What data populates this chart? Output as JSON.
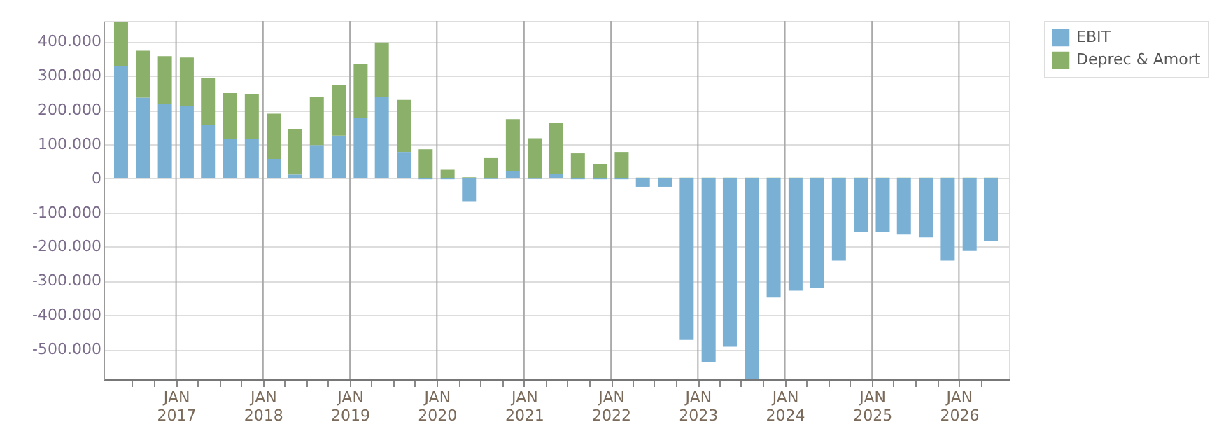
{
  "chart_data": {
    "type": "bar",
    "stacked": true,
    "x": [
      "2016-05-15",
      "2016-08-15",
      "2016-11-15",
      "2017-02-15",
      "2017-05-15",
      "2017-08-15",
      "2017-11-15",
      "2018-02-15",
      "2018-05-15",
      "2018-08-15",
      "2018-11-15",
      "2019-02-15",
      "2019-05-15",
      "2019-08-15",
      "2019-11-15",
      "2020-02-15",
      "2020-05-15",
      "2020-08-15",
      "2020-11-15",
      "2021-02-15",
      "2021-05-15",
      "2021-08-15",
      "2021-11-15",
      "2022-02-15",
      "2022-05-15",
      "2022-08-15",
      "2022-11-15",
      "2023-02-15",
      "2023-05-15",
      "2023-08-15",
      "2023-11-15",
      "2024-02-15",
      "2024-05-15",
      "2024-08-15",
      "2024-11-15",
      "2025-02-15",
      "2025-05-15",
      "2025-08-15",
      "2025-11-15",
      "2026-02-15",
      "2026-05-15"
    ],
    "series": [
      {
        "name": "EBIT",
        "color": "#7ab0d4",
        "values": [
          329000,
          236000,
          217000,
          212000,
          156000,
          116000,
          116000,
          57000,
          11000,
          97000,
          125000,
          177000,
          237000,
          77000,
          -3000,
          -3000,
          -67000,
          -2000,
          21000,
          -2000,
          13000,
          -3000,
          -3000,
          -3000,
          -25000,
          -25000,
          -473000,
          -537000,
          -493000,
          -588000,
          -349000,
          -329000,
          -321000,
          -241000,
          -157000,
          -157000,
          -165000,
          -173000,
          -241000,
          -213000,
          -185000
        ]
      },
      {
        "name": "Deprec & Amort",
        "color": "#8ab06a",
        "values": [
          128000,
          137000,
          140000,
          141000,
          137000,
          133000,
          129000,
          132000,
          134000,
          140000,
          148000,
          156000,
          160000,
          152000,
          85000,
          25000,
          3000,
          59000,
          152000,
          117000,
          148000,
          73000,
          41000,
          77000,
          2000,
          2000,
          2000,
          2000,
          2000,
          2000,
          2000,
          2000,
          2000,
          2000,
          2000,
          2000,
          2000,
          2000,
          2000,
          2000,
          2000
        ]
      }
    ],
    "xlim": [
      "2016-04-01",
      "2026-07-01"
    ],
    "xticks": [
      {
        "value": "2016-07-01",
        "label": null
      },
      {
        "value": "2016-10-01",
        "label": null
      },
      {
        "value": "2017-01-01",
        "label": "JAN 2017"
      },
      {
        "value": "2017-04-01",
        "label": null
      },
      {
        "value": "2017-07-01",
        "label": null
      },
      {
        "value": "2017-10-01",
        "label": null
      },
      {
        "value": "2018-01-01",
        "label": "JAN 2018"
      },
      {
        "value": "2018-04-01",
        "label": null
      },
      {
        "value": "2018-07-01",
        "label": null
      },
      {
        "value": "2018-10-01",
        "label": null
      },
      {
        "value": "2019-01-01",
        "label": "JAN 2019"
      },
      {
        "value": "2019-04-01",
        "label": null
      },
      {
        "value": "2019-07-01",
        "label": null
      },
      {
        "value": "2019-10-01",
        "label": null
      },
      {
        "value": "2020-01-01",
        "label": "JAN 2020"
      },
      {
        "value": "2020-04-01",
        "label": null
      },
      {
        "value": "2020-07-01",
        "label": null
      },
      {
        "value": "2020-10-01",
        "label": null
      },
      {
        "value": "2021-01-01",
        "label": "JAN 2021"
      },
      {
        "value": "2021-04-01",
        "label": null
      },
      {
        "value": "2021-07-01",
        "label": null
      },
      {
        "value": "2021-10-01",
        "label": null
      },
      {
        "value": "2022-01-01",
        "label": "JAN 2022"
      },
      {
        "value": "2022-04-01",
        "label": null
      },
      {
        "value": "2022-07-01",
        "label": null
      },
      {
        "value": "2022-10-01",
        "label": null
      },
      {
        "value": "2023-01-01",
        "label": "JAN 2023"
      },
      {
        "value": "2023-04-01",
        "label": null
      },
      {
        "value": "2023-07-01",
        "label": null
      },
      {
        "value": "2023-10-01",
        "label": null
      },
      {
        "value": "2024-01-01",
        "label": "JAN 2024"
      },
      {
        "value": "2024-04-01",
        "label": null
      },
      {
        "value": "2024-07-01",
        "label": null
      },
      {
        "value": "2024-10-01",
        "label": null
      },
      {
        "value": "2025-01-01",
        "label": "JAN 2025"
      },
      {
        "value": "2025-04-01",
        "label": null
      },
      {
        "value": "2025-07-01",
        "label": null
      },
      {
        "value": "2025-10-01",
        "label": null
      },
      {
        "value": "2026-01-01",
        "label": "JAN 2026"
      },
      {
        "value": "2026-04-01",
        "label": null
      }
    ],
    "ylim": [
      -588000,
      460000
    ],
    "yticks": [
      {
        "value": -500000,
        "label": "-500.000"
      },
      {
        "value": -400000,
        "label": "-400.000"
      },
      {
        "value": -300000,
        "label": "-300.000"
      },
      {
        "value": -200000,
        "label": "-200.000"
      },
      {
        "value": -100000,
        "label": "-100.000"
      },
      {
        "value": 0,
        "label": "0"
      },
      {
        "value": 100000,
        "label": "100.000"
      },
      {
        "value": 200000,
        "label": "200.000"
      },
      {
        "value": 300000,
        "label": "300.000"
      },
      {
        "value": 400000,
        "label": "400.000"
      }
    ],
    "grid": true,
    "legend": "top right"
  }
}
